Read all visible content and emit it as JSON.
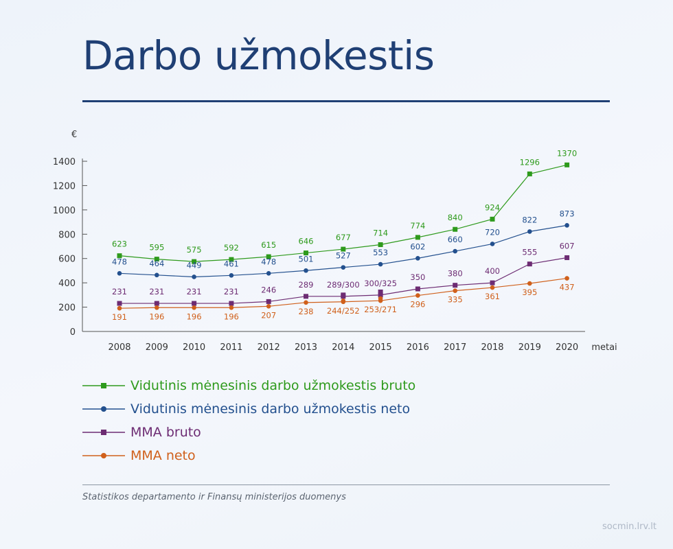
{
  "title": "Darbo užmokestis",
  "source": "Statistikos departamento ir Finansų ministerijos duomenys",
  "site": "socmin.lrv.lt",
  "chart_data": {
    "type": "line",
    "unit": "€",
    "xlabel": "metai",
    "x": [
      2008,
      2009,
      2010,
      2011,
      2012,
      2013,
      2014,
      2015,
      2016,
      2017,
      2018,
      2019,
      2020
    ],
    "ylim": [
      0,
      1400
    ],
    "yticks": [
      0,
      200,
      400,
      600,
      800,
      1000,
      1200,
      1400
    ],
    "series": [
      {
        "name": "Vidutinis mėnesinis darbo užmokestis bruto",
        "color": "#2e9a1c",
        "marker": "square",
        "values": [
          623,
          595,
          575,
          592,
          615,
          646,
          677,
          714,
          774,
          840,
          924,
          1296,
          1370
        ],
        "labels": [
          "623",
          "595",
          "575",
          "592",
          "615",
          "646",
          "677",
          "714",
          "774",
          "840",
          "924",
          "1296",
          "1370"
        ]
      },
      {
        "name": "Vidutinis mėnesinis darbo užmokestis neto",
        "color": "#23508e",
        "marker": "circle",
        "values": [
          478,
          464,
          449,
          461,
          478,
          501,
          527,
          553,
          602,
          660,
          720,
          822,
          873
        ],
        "labels": [
          "478",
          "464",
          "449",
          "461",
          "478",
          "501",
          "527",
          "553",
          "602",
          "660",
          "720",
          "822",
          "873"
        ]
      },
      {
        "name": "MMA bruto",
        "color": "#6d2c73",
        "marker": "square",
        "values": [
          231,
          231,
          231,
          231,
          246,
          289,
          289,
          300,
          350,
          380,
          400,
          555,
          607
        ],
        "extra_points": [
          {
            "x": 2014,
            "y": 300
          },
          {
            "x": 2015,
            "y": 325
          }
        ],
        "labels": [
          "231",
          "231",
          "231",
          "231",
          "246",
          "289",
          "289/300",
          "300/325",
          "350",
          "380",
          "400",
          "555",
          "607"
        ]
      },
      {
        "name": "MMA neto",
        "color": "#d0601b",
        "marker": "circle",
        "values": [
          191,
          196,
          196,
          196,
          207,
          238,
          244,
          253,
          296,
          335,
          361,
          395,
          437
        ],
        "extra_points": [
          {
            "x": 2014,
            "y": 252
          },
          {
            "x": 2015,
            "y": 271
          }
        ],
        "labels": [
          "191",
          "196",
          "196",
          "196",
          "207",
          "238",
          "244/252",
          "253/271",
          "296",
          "335",
          "361",
          "395",
          "437"
        ]
      }
    ]
  }
}
